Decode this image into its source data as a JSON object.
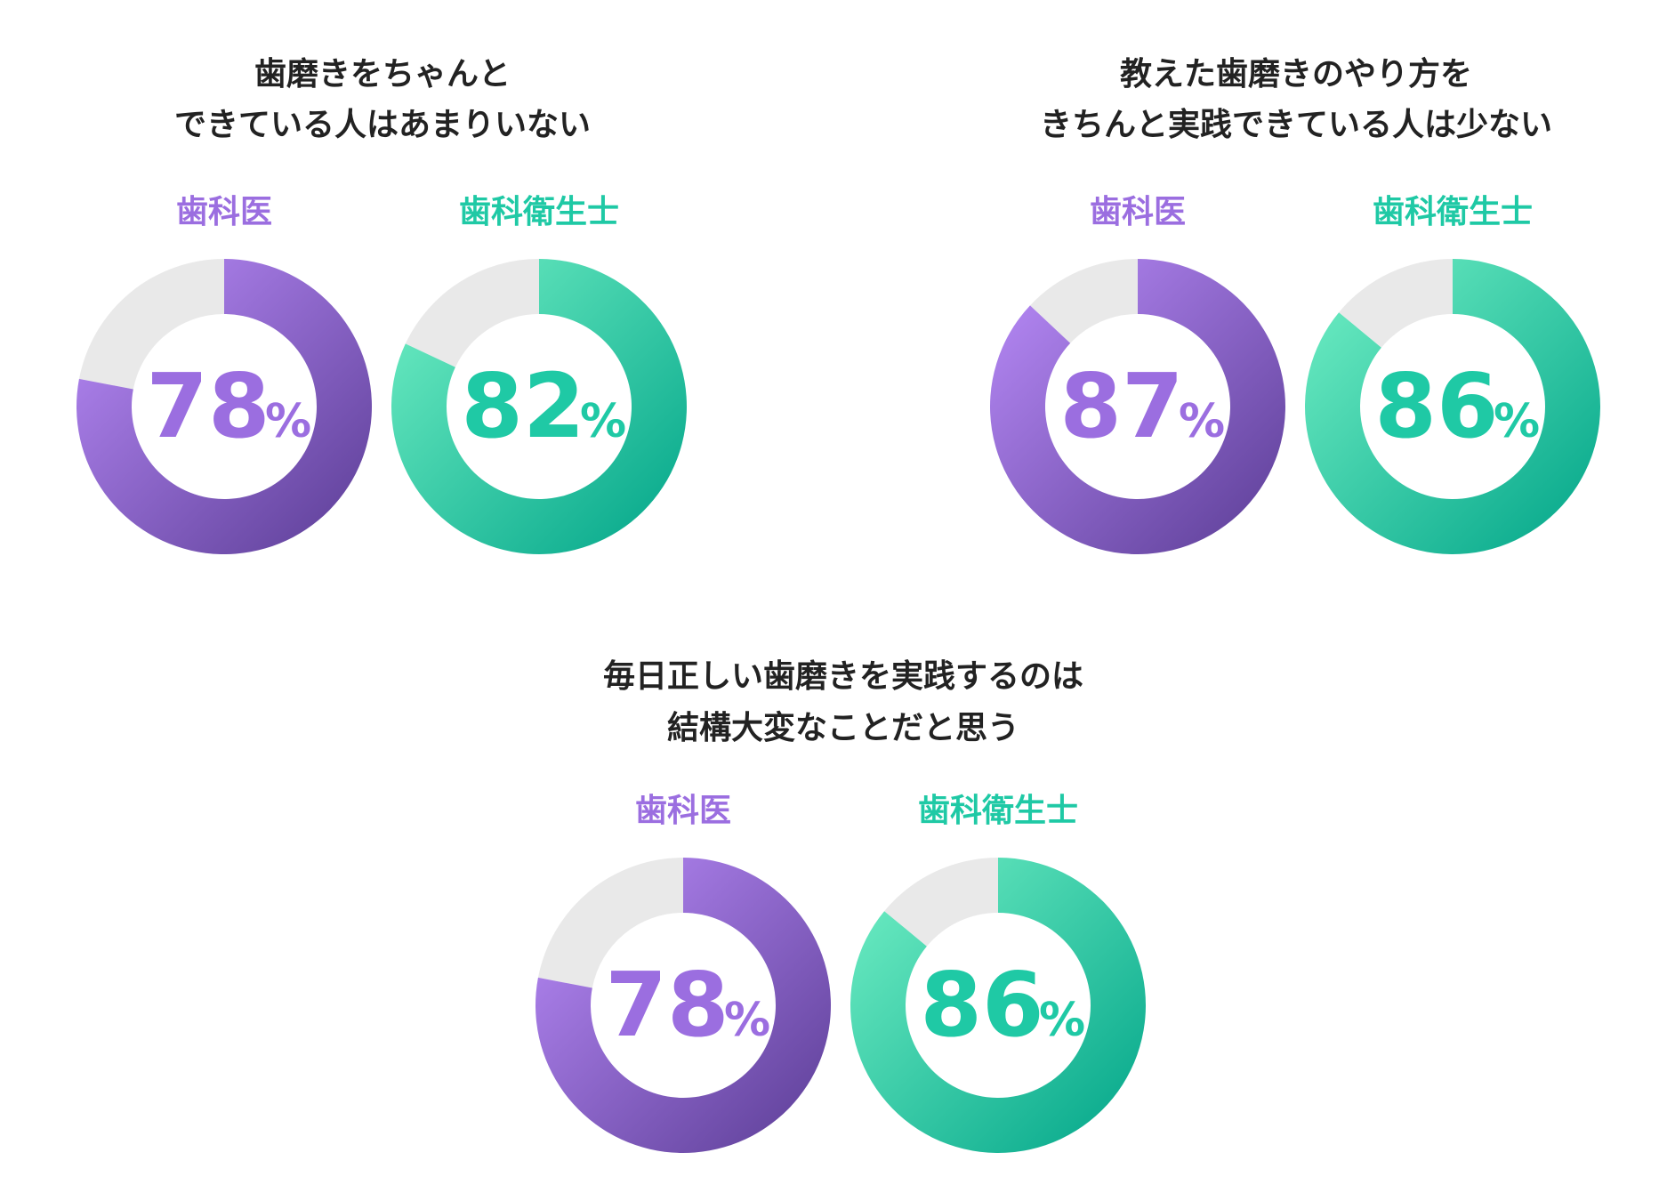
{
  "chart_data": [
    {
      "type": "pie",
      "variant": "donut",
      "title": [
        "歯磨きをちゃんと",
        "できている人はあまりいない"
      ],
      "series": [
        {
          "name": "歯科医",
          "value": 78,
          "unit": "%",
          "color": "#9b6ee0"
        },
        {
          "name": "歯科衛生士",
          "value": 82,
          "unit": "%",
          "color": "#1fc9a5"
        }
      ]
    },
    {
      "type": "pie",
      "variant": "donut",
      "title": [
        "教えた歯磨きのやり方を",
        "きちんと実践できている人は少ない"
      ],
      "series": [
        {
          "name": "歯科医",
          "value": 87,
          "unit": "%",
          "color": "#9b6ee0"
        },
        {
          "name": "歯科衛生士",
          "value": 86,
          "unit": "%",
          "color": "#1fc9a5"
        }
      ]
    },
    {
      "type": "pie",
      "variant": "donut",
      "title": [
        "毎日正しい歯磨きを実践するのは",
        "結構大変なことだと思う"
      ],
      "series": [
        {
          "name": "歯科医",
          "value": 78,
          "unit": "%",
          "color": "#9b6ee0"
        },
        {
          "name": "歯科衛生士",
          "value": 86,
          "unit": "%",
          "color": "#1fc9a5"
        }
      ]
    }
  ],
  "colors": {
    "dentist_start": "#bb8dfb",
    "dentist_end": "#5a3c94",
    "hygienist_start": "#74f1c6",
    "hygienist_end": "#00a488",
    "remainder": "#e9e9e9",
    "title": "#222222"
  }
}
